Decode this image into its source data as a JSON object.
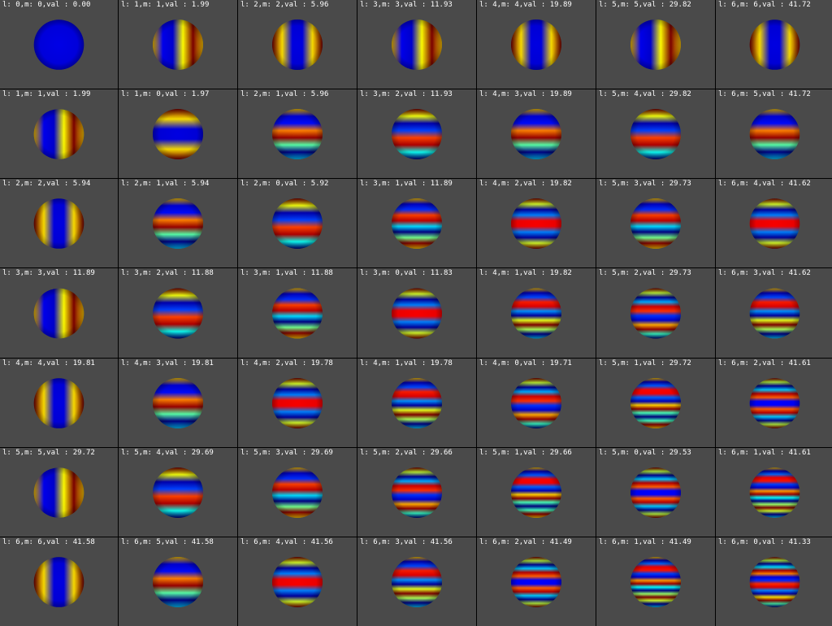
{
  "window": {
    "background": "#4a4a4a",
    "grid_lines": "#000000"
  },
  "colormap": "jet",
  "cells": [
    {
      "label": "l: 0,m: 0,val : 0.00",
      "l": 0,
      "m": 0,
      "val": 0.0
    },
    {
      "label": "l: 1,m: 1,val : 1.99",
      "l": 1,
      "m": 1,
      "val": 1.99
    },
    {
      "label": "l: 2,m: 2,val : 5.96",
      "l": 2,
      "m": 2,
      "val": 5.96
    },
    {
      "label": "l: 3,m: 3,val : 11.93",
      "l": 3,
      "m": 3,
      "val": 11.93
    },
    {
      "label": "l: 4,m: 4,val : 19.89",
      "l": 4,
      "m": 4,
      "val": 19.89
    },
    {
      "label": "l: 5,m: 5,val : 29.82",
      "l": 5,
      "m": 5,
      "val": 29.82
    },
    {
      "label": "l: 6,m: 6,val : 41.72",
      "l": 6,
      "m": 6,
      "val": 41.72
    },
    {
      "label": "l: 1,m: 1,val : 1.99",
      "l": 1,
      "m": 1,
      "val": 1.99
    },
    {
      "label": "l: 1,m: 0,val : 1.97",
      "l": 1,
      "m": 0,
      "val": 1.97
    },
    {
      "label": "l: 2,m: 1,val : 5.96",
      "l": 2,
      "m": 1,
      "val": 5.96
    },
    {
      "label": "l: 3,m: 2,val : 11.93",
      "l": 3,
      "m": 2,
      "val": 11.93
    },
    {
      "label": "l: 4,m: 3,val : 19.89",
      "l": 4,
      "m": 3,
      "val": 19.89
    },
    {
      "label": "l: 5,m: 4,val : 29.82",
      "l": 5,
      "m": 4,
      "val": 29.82
    },
    {
      "label": "l: 6,m: 5,val : 41.72",
      "l": 6,
      "m": 5,
      "val": 41.72
    },
    {
      "label": "l: 2,m: 2,val : 5.94",
      "l": 2,
      "m": 2,
      "val": 5.94
    },
    {
      "label": "l: 2,m: 1,val : 5.94",
      "l": 2,
      "m": 1,
      "val": 5.94
    },
    {
      "label": "l: 2,m: 0,val : 5.92",
      "l": 2,
      "m": 0,
      "val": 5.92
    },
    {
      "label": "l: 3,m: 1,val : 11.89",
      "l": 3,
      "m": 1,
      "val": 11.89
    },
    {
      "label": "l: 4,m: 2,val : 19.82",
      "l": 4,
      "m": 2,
      "val": 19.82
    },
    {
      "label": "l: 5,m: 3,val : 29.73",
      "l": 5,
      "m": 3,
      "val": 29.73
    },
    {
      "label": "l: 6,m: 4,val : 41.62",
      "l": 6,
      "m": 4,
      "val": 41.62
    },
    {
      "label": "l: 3,m: 3,val : 11.89",
      "l": 3,
      "m": 3,
      "val": 11.89
    },
    {
      "label": "l: 3,m: 2,val : 11.88",
      "l": 3,
      "m": 2,
      "val": 11.88
    },
    {
      "label": "l: 3,m: 1,val : 11.88",
      "l": 3,
      "m": 1,
      "val": 11.88
    },
    {
      "label": "l: 3,m: 0,val : 11.83",
      "l": 3,
      "m": 0,
      "val": 11.83
    },
    {
      "label": "l: 4,m: 1,val : 19.82",
      "l": 4,
      "m": 1,
      "val": 19.82
    },
    {
      "label": "l: 5,m: 2,val : 29.73",
      "l": 5,
      "m": 2,
      "val": 29.73
    },
    {
      "label": "l: 6,m: 3,val : 41.62",
      "l": 6,
      "m": 3,
      "val": 41.62
    },
    {
      "label": "l: 4,m: 4,val : 19.81",
      "l": 4,
      "m": 4,
      "val": 19.81
    },
    {
      "label": "l: 4,m: 3,val : 19.81",
      "l": 4,
      "m": 3,
      "val": 19.81
    },
    {
      "label": "l: 4,m: 2,val : 19.78",
      "l": 4,
      "m": 2,
      "val": 19.78
    },
    {
      "label": "l: 4,m: 1,val : 19.78",
      "l": 4,
      "m": 1,
      "val": 19.78
    },
    {
      "label": "l: 4,m: 0,val : 19.71",
      "l": 4,
      "m": 0,
      "val": 19.71
    },
    {
      "label": "l: 5,m: 1,val : 29.72",
      "l": 5,
      "m": 1,
      "val": 29.72
    },
    {
      "label": "l: 6,m: 2,val : 41.61",
      "l": 6,
      "m": 2,
      "val": 41.61
    },
    {
      "label": "l: 5,m: 5,val : 29.72",
      "l": 5,
      "m": 5,
      "val": 29.72
    },
    {
      "label": "l: 5,m: 4,val : 29.69",
      "l": 5,
      "m": 4,
      "val": 29.69
    },
    {
      "label": "l: 5,m: 3,val : 29.69",
      "l": 5,
      "m": 3,
      "val": 29.69
    },
    {
      "label": "l: 5,m: 2,val : 29.66",
      "l": 5,
      "m": 2,
      "val": 29.66
    },
    {
      "label": "l: 5,m: 1,val : 29.66",
      "l": 5,
      "m": 1,
      "val": 29.66
    },
    {
      "label": "l: 5,m: 0,val : 29.53",
      "l": 5,
      "m": 0,
      "val": 29.53
    },
    {
      "label": "l: 6,m: 1,val : 41.61",
      "l": 6,
      "m": 1,
      "val": 41.61
    },
    {
      "label": "l: 6,m: 6,val : 41.58",
      "l": 6,
      "m": 6,
      "val": 41.58
    },
    {
      "label": "l: 6,m: 5,val : 41.58",
      "l": 6,
      "m": 5,
      "val": 41.58
    },
    {
      "label": "l: 6,m: 4,val : 41.56",
      "l": 6,
      "m": 4,
      "val": 41.56
    },
    {
      "label": "l: 6,m: 3,val : 41.56",
      "l": 6,
      "m": 3,
      "val": 41.56
    },
    {
      "label": "l: 6,m: 2,val : 41.49",
      "l": 6,
      "m": 2,
      "val": 41.49
    },
    {
      "label": "l: 6,m: 1,val : 41.49",
      "l": 6,
      "m": 1,
      "val": 41.49
    },
    {
      "label": "l: 6,m: 0,val : 41.33",
      "l": 6,
      "m": 0,
      "val": 41.33
    }
  ]
}
